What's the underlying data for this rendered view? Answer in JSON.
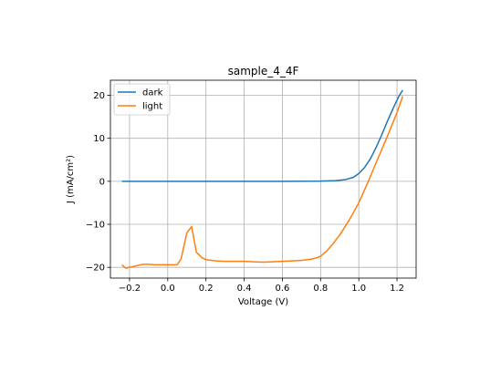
{
  "chart_data": {
    "type": "line",
    "title": "sample_4_4F",
    "xlabel": "Voltage (V)",
    "ylabel": "J (mA/cm²)",
    "xlim": [
      -0.3,
      1.3
    ],
    "ylim": [
      -22.5,
      23.5
    ],
    "xticks": [
      -0.2,
      0.0,
      0.2,
      0.4,
      0.6,
      0.8,
      1.0,
      1.2
    ],
    "xtick_labels": [
      "−0.2",
      "0.0",
      "0.2",
      "0.4",
      "0.6",
      "0.8",
      "1.0",
      "1.2"
    ],
    "yticks": [
      -20,
      -10,
      0,
      10,
      20
    ],
    "ytick_labels": [
      "−20",
      "−10",
      "0",
      "10",
      "20"
    ],
    "grid": true,
    "legend_position": "upper-left",
    "series": [
      {
        "name": "dark",
        "color": "#1f77b4",
        "points": [
          [
            -0.24,
            0.0
          ],
          [
            0.0,
            0.0
          ],
          [
            0.2,
            0.0
          ],
          [
            0.4,
            0.0
          ],
          [
            0.6,
            0.0
          ],
          [
            0.8,
            0.05
          ],
          [
            0.88,
            0.15
          ],
          [
            0.93,
            0.4
          ],
          [
            0.97,
            0.9
          ],
          [
            1.0,
            1.8
          ],
          [
            1.03,
            3.2
          ],
          [
            1.06,
            5.2
          ],
          [
            1.09,
            7.8
          ],
          [
            1.12,
            10.8
          ],
          [
            1.15,
            14.0
          ],
          [
            1.18,
            17.0
          ],
          [
            1.21,
            19.8
          ],
          [
            1.23,
            21.2
          ]
        ]
      },
      {
        "name": "light",
        "color": "#ff7f0e",
        "points": [
          [
            -0.24,
            -19.4
          ],
          [
            -0.22,
            -20.2
          ],
          [
            -0.19,
            -19.9
          ],
          [
            -0.16,
            -19.6
          ],
          [
            -0.13,
            -19.3
          ],
          [
            -0.1,
            -19.3
          ],
          [
            -0.07,
            -19.4
          ],
          [
            -0.04,
            -19.4
          ],
          [
            0.0,
            -19.4
          ],
          [
            0.05,
            -19.4
          ],
          [
            0.07,
            -18.0
          ],
          [
            0.1,
            -12.0
          ],
          [
            0.125,
            -10.5
          ],
          [
            0.15,
            -16.5
          ],
          [
            0.18,
            -17.8
          ],
          [
            0.2,
            -18.2
          ],
          [
            0.25,
            -18.5
          ],
          [
            0.3,
            -18.6
          ],
          [
            0.35,
            -18.6
          ],
          [
            0.4,
            -18.6
          ],
          [
            0.45,
            -18.7
          ],
          [
            0.5,
            -18.8
          ],
          [
            0.55,
            -18.7
          ],
          [
            0.6,
            -18.6
          ],
          [
            0.65,
            -18.5
          ],
          [
            0.7,
            -18.4
          ],
          [
            0.75,
            -18.1
          ],
          [
            0.78,
            -17.8
          ],
          [
            0.8,
            -17.4
          ],
          [
            0.83,
            -16.3
          ],
          [
            0.86,
            -14.8
          ],
          [
            0.9,
            -12.5
          ],
          [
            0.95,
            -9.0
          ],
          [
            1.0,
            -5.0
          ],
          [
            1.05,
            0.0
          ],
          [
            1.1,
            5.3
          ],
          [
            1.15,
            10.5
          ],
          [
            1.2,
            16.0
          ],
          [
            1.23,
            19.8
          ]
        ]
      }
    ]
  }
}
